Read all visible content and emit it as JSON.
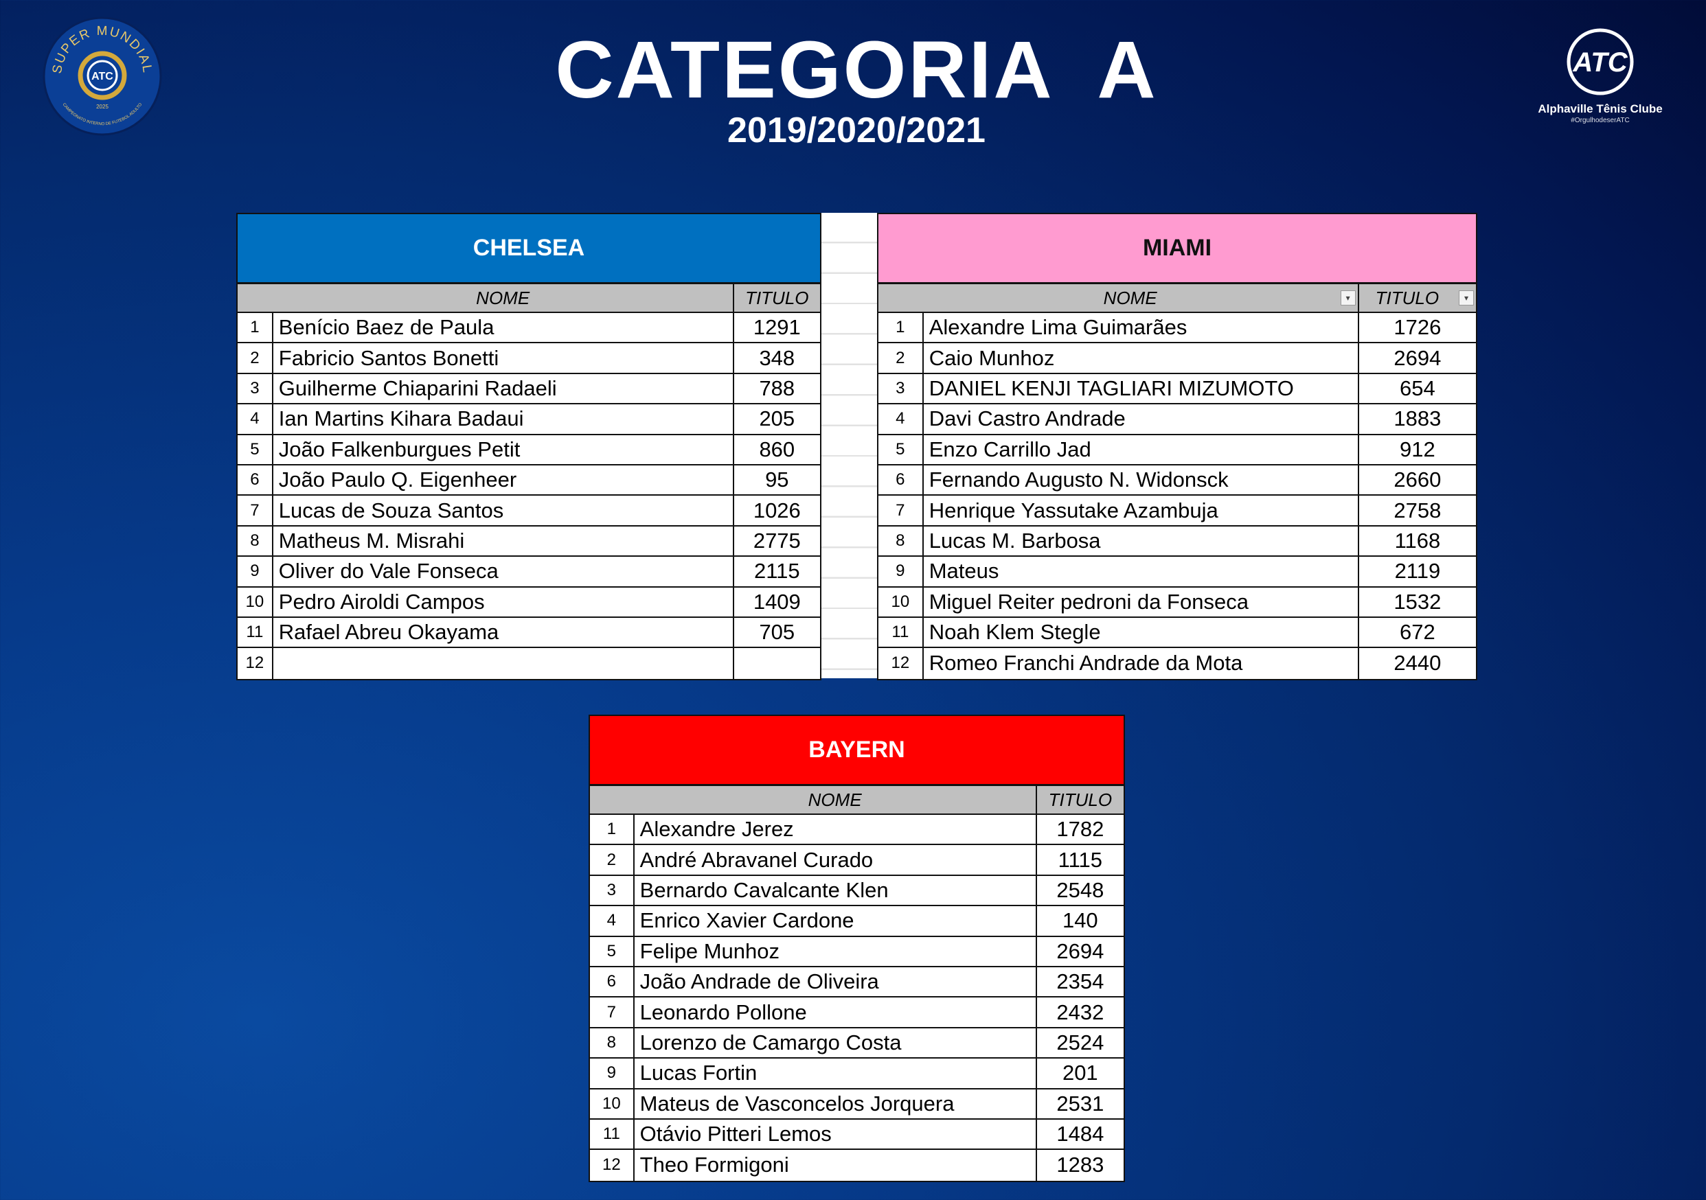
{
  "header": {
    "title": "CATEGORIA  A",
    "subtitle": "2019/2020/2021",
    "left_logo": {
      "text": "SUPER MUNDIAL",
      "year": "2025",
      "caption": "CAMPEONATO INTERNO DE FUTEBOL ADULTO",
      "icon": "super-mundial-logo"
    },
    "right_logo": {
      "mark": "ATC",
      "name": "Alphaville Tênis Clube",
      "tag": "#OrgulhodeserATC",
      "icon": "atc-logo"
    }
  },
  "colors": {
    "chelsea": "#0070c0",
    "miami": "#ff9bd0",
    "bayern": "#ff0000",
    "column_header": "#c0c0c0"
  },
  "teams": [
    {
      "name": "CHELSEA",
      "columns": [
        "NOME",
        "TITULO"
      ],
      "filter_icons": false,
      "rows": [
        {
          "n": "1",
          "name": "Benício Baez de Paula",
          "titulo": "1291"
        },
        {
          "n": "2",
          "name": "Fabricio Santos Bonetti",
          "titulo": "348"
        },
        {
          "n": "3",
          "name": "Guilherme Chiaparini Radaeli",
          "titulo": "788"
        },
        {
          "n": "4",
          "name": "Ian Martins Kihara Badaui",
          "titulo": "205"
        },
        {
          "n": "5",
          "name": "João Falkenburgues Petit",
          "titulo": "860"
        },
        {
          "n": "6",
          "name": "João Paulo Q. Eigenheer",
          "titulo": "95"
        },
        {
          "n": "7",
          "name": "Lucas de Souza Santos",
          "titulo": "1026"
        },
        {
          "n": "8",
          "name": "Matheus M. Misrahi",
          "titulo": "2775"
        },
        {
          "n": "9",
          "name": "Oliver do Vale Fonseca",
          "titulo": "2115"
        },
        {
          "n": "10",
          "name": "Pedro Airoldi Campos",
          "titulo": "1409"
        },
        {
          "n": "11",
          "name": "Rafael Abreu Okayama",
          "titulo": "705"
        },
        {
          "n": "12",
          "name": "",
          "titulo": ""
        }
      ]
    },
    {
      "name": "MIAMI",
      "columns": [
        "NOME",
        "TITULO"
      ],
      "filter_icons": true,
      "rows": [
        {
          "n": "1",
          "name": "Alexandre Lima Guimarães",
          "titulo": "1726"
        },
        {
          "n": "2",
          "name": "Caio Munhoz",
          "titulo": "2694"
        },
        {
          "n": "3",
          "name": "DANIEL KENJI TAGLIARI MIZUMOTO",
          "titulo": "654"
        },
        {
          "n": "4",
          "name": "Davi Castro Andrade",
          "titulo": "1883"
        },
        {
          "n": "5",
          "name": "Enzo Carrillo Jad",
          "titulo": "912"
        },
        {
          "n": "6",
          "name": "Fernando Augusto N. Widonsck",
          "titulo": "2660"
        },
        {
          "n": "7",
          "name": "Henrique Yassutake Azambuja",
          "titulo": "2758"
        },
        {
          "n": "8",
          "name": "Lucas M. Barbosa",
          "titulo": "1168"
        },
        {
          "n": "9",
          "name": "Mateus",
          "titulo": "2119"
        },
        {
          "n": "10",
          "name": "Miguel Reiter pedroni da Fonseca",
          "titulo": "1532"
        },
        {
          "n": "11",
          "name": "Noah Klem Stegle",
          "titulo": "672"
        },
        {
          "n": "12",
          "name": "Romeo Franchi Andrade da Mota",
          "titulo": "2440"
        }
      ]
    },
    {
      "name": "BAYERN",
      "columns": [
        "NOME",
        "TITULO"
      ],
      "filter_icons": false,
      "rows": [
        {
          "n": "1",
          "name": "Alexandre Jerez",
          "titulo": "1782"
        },
        {
          "n": "2",
          "name": "André Abravanel Curado",
          "titulo": "1115"
        },
        {
          "n": "3",
          "name": "Bernardo Cavalcante Klen",
          "titulo": "2548"
        },
        {
          "n": "4",
          "name": "Enrico Xavier Cardone",
          "titulo": "140"
        },
        {
          "n": "5",
          "name": "Felipe Munhoz",
          "titulo": "2694"
        },
        {
          "n": "6",
          "name": "João Andrade de Oliveira",
          "titulo": "2354"
        },
        {
          "n": "7",
          "name": "Leonardo Pollone",
          "titulo": "2432"
        },
        {
          "n": "8",
          "name": "Lorenzo de Camargo Costa",
          "titulo": "2524"
        },
        {
          "n": "9",
          "name": "Lucas Fortin",
          "titulo": "201"
        },
        {
          "n": "10",
          "name": "Mateus de Vasconcelos Jorquera",
          "titulo": "2531"
        },
        {
          "n": "11",
          "name": "Otávio Pitteri Lemos",
          "titulo": "1484"
        },
        {
          "n": "12",
          "name": "Theo Formigoni",
          "titulo": "1283"
        }
      ]
    }
  ]
}
